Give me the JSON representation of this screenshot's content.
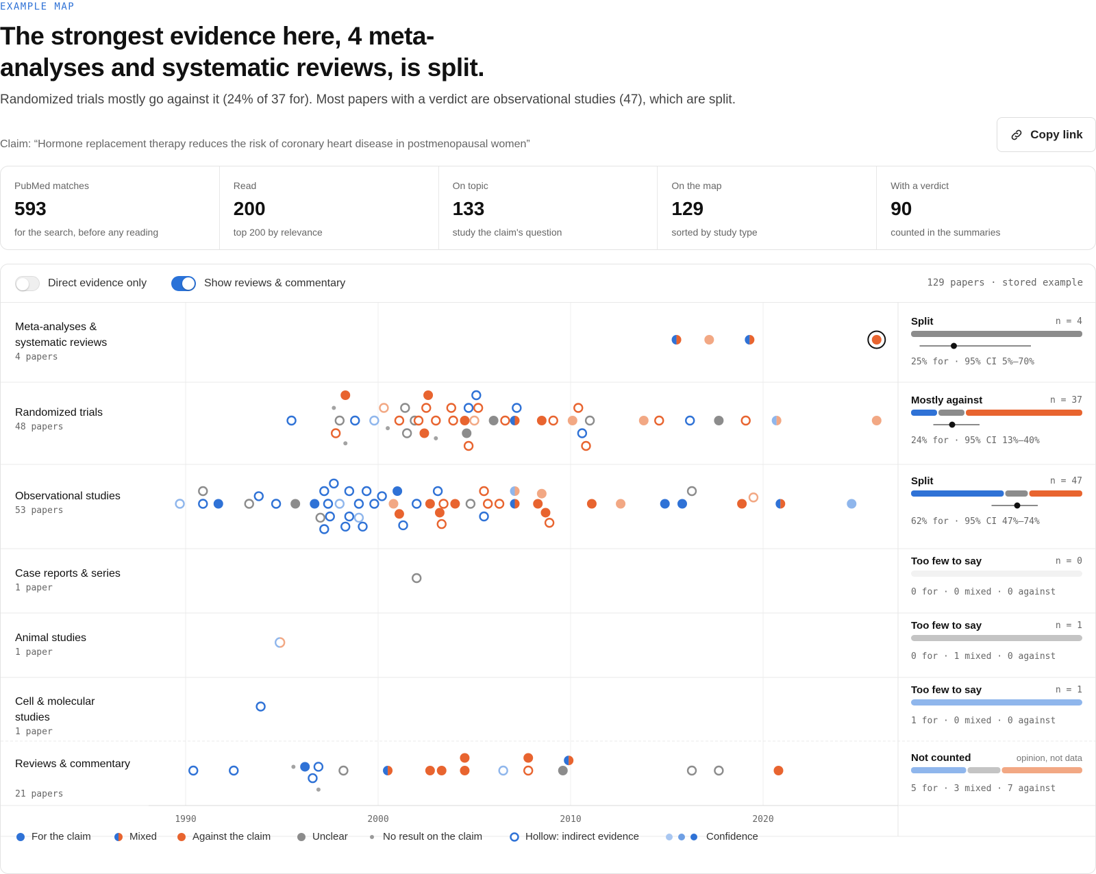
{
  "header": {
    "eyebrow": "EXAMPLE MAP",
    "headline": "The strongest evidence here, 4 meta-analyses and systematic reviews, is split.",
    "subhead": "Randomized trials mostly go against it (24% of 37 for). Most papers with a verdict are observational studies (47), which are split.",
    "claim": "Claim: “Hormone replacement therapy reduces the risk of coronary heart disease in postmenopausal women”",
    "copy_link_label": "Copy link"
  },
  "stats": [
    {
      "label": "PubMed matches",
      "value": "593",
      "note": "for the search, before any reading"
    },
    {
      "label": "Read",
      "value": "200",
      "note": "top 200 by relevance"
    },
    {
      "label": "On topic",
      "value": "133",
      "note": "study the claim's question"
    },
    {
      "label": "On the map",
      "value": "129",
      "note": "sorted by study type"
    },
    {
      "label": "With a verdict",
      "value": "90",
      "note": "counted in the summaries"
    }
  ],
  "toolbar": {
    "direct_only_label": "Direct evidence only",
    "direct_only_on": false,
    "show_reviews_label": "Show reviews & commentary",
    "show_reviews_on": true,
    "status": "129 papers · stored example"
  },
  "colors": {
    "for": "#2f72d6",
    "against": "#e8642f",
    "unclear": "#8c8c8c",
    "for_light": "#8fb6ec",
    "against_light": "#f2a884",
    "unclear_light": "#c4c4c4"
  },
  "chart_data": {
    "type": "scatter",
    "x_ticks": [
      "1990",
      "2000",
      "2010",
      "2020"
    ],
    "xlim": [
      1990,
      2026
    ],
    "rows": [
      {
        "label": "Meta-analyses & systematic reviews",
        "count": "4 papers",
        "summary": {
          "verdict": "Split",
          "n": "n = 4",
          "stat": "25% for · 95% CI 5%–70%",
          "bar": [
            0,
            1,
            1
          ],
          "point": 0.25,
          "ci": [
            0.05,
            0.7
          ]
        },
        "points": [
          {
            "x": 2015.5,
            "lane": 0,
            "v": "mixed"
          },
          {
            "x": 2017.2,
            "lane": 0,
            "v": "against",
            "c": 2
          },
          {
            "x": 2019.3,
            "lane": 0,
            "v": "mixed"
          },
          {
            "x": 2025.9,
            "lane": 0,
            "v": "against",
            "highlight": true
          }
        ]
      },
      {
        "label": "Randomized trials",
        "count": "48 papers",
        "summary": {
          "verdict": "Mostly against",
          "n": "n = 37",
          "stat": "24% for · 95% CI 13%–40%",
          "bar": [
            0.16,
            0.16,
            0.68
          ],
          "point": 0.24,
          "ci": [
            0.13,
            0.4
          ]
        },
        "points": [
          {
            "x": 1995.5,
            "lane": 0,
            "v": "for",
            "hollow": true
          },
          {
            "x": 1998.0,
            "lane": 0,
            "v": "unclear",
            "hollow": true
          },
          {
            "x": 1998.8,
            "lane": 0,
            "v": "for",
            "hollow": true
          },
          {
            "x": 1999.8,
            "lane": 0,
            "v": "for",
            "hollow": true,
            "c": 2
          },
          {
            "x": 2001.1,
            "lane": 0,
            "v": "against",
            "hollow": true
          },
          {
            "x": 2001.9,
            "lane": 0,
            "v": "unclear",
            "hollow": true
          },
          {
            "x": 2002.1,
            "lane": 0,
            "v": "against",
            "hollow": true
          },
          {
            "x": 2003.0,
            "lane": 0,
            "v": "against",
            "hollow": true
          },
          {
            "x": 2003.9,
            "lane": 0,
            "v": "against",
            "hollow": true
          },
          {
            "x": 2004.5,
            "lane": 0,
            "v": "against"
          },
          {
            "x": 2005.0,
            "lane": 0,
            "v": "against",
            "hollow": true,
            "c": 2
          },
          {
            "x": 2006.0,
            "lane": 0,
            "v": "unclear"
          },
          {
            "x": 2006.6,
            "lane": 0,
            "v": "against",
            "hollow": true
          },
          {
            "x": 2007.1,
            "lane": 0,
            "v": "mixed"
          },
          {
            "x": 2008.5,
            "lane": 0,
            "v": "against"
          },
          {
            "x": 2009.1,
            "lane": 0,
            "v": "against",
            "hollow": true
          },
          {
            "x": 2010.1,
            "lane": 0,
            "v": "against",
            "c": 2
          },
          {
            "x": 2011.0,
            "lane": 0,
            "v": "unclear",
            "hollow": true
          },
          {
            "x": 2013.8,
            "lane": 0,
            "v": "against",
            "c": 2
          },
          {
            "x": 2014.6,
            "lane": 0,
            "v": "against",
            "hollow": true
          },
          {
            "x": 2016.2,
            "lane": 0,
            "v": "for",
            "hollow": true
          },
          {
            "x": 2017.7,
            "lane": 0,
            "v": "unclear"
          },
          {
            "x": 2019.1,
            "lane": 0,
            "v": "against",
            "hollow": true
          },
          {
            "x": 2020.7,
            "lane": 0,
            "v": "mixed",
            "c": 2
          },
          {
            "x": 2025.9,
            "lane": 0,
            "v": "against",
            "c": 2
          },
          {
            "x": 1998.3,
            "lane": -2,
            "v": "against"
          },
          {
            "x": 2000.3,
            "lane": -1,
            "v": "against",
            "hollow": true,
            "c": 2
          },
          {
            "x": 2001.4,
            "lane": -1,
            "v": "unclear",
            "hollow": true
          },
          {
            "x": 2002.5,
            "lane": -1,
            "v": "against",
            "hollow": true
          },
          {
            "x": 2002.6,
            "lane": -2,
            "v": "against"
          },
          {
            "x": 2003.8,
            "lane": -1,
            "v": "against",
            "hollow": true
          },
          {
            "x": 2004.7,
            "lane": -1,
            "v": "for",
            "hollow": true
          },
          {
            "x": 2005.2,
            "lane": -1,
            "v": "against",
            "hollow": true
          },
          {
            "x": 2005.1,
            "lane": -2,
            "v": "for",
            "hollow": true
          },
          {
            "x": 2007.2,
            "lane": -1,
            "v": "for",
            "hollow": true
          },
          {
            "x": 2010.4,
            "lane": -1,
            "v": "against",
            "hollow": true
          },
          {
            "x": 1997.8,
            "lane": 1,
            "v": "against",
            "hollow": true
          },
          {
            "x": 2001.5,
            "lane": 1,
            "v": "unclear",
            "hollow": true
          },
          {
            "x": 2002.4,
            "lane": 1,
            "v": "against"
          },
          {
            "x": 2004.6,
            "lane": 1,
            "v": "unclear"
          },
          {
            "x": 2010.6,
            "lane": 1,
            "v": "for",
            "hollow": true
          },
          {
            "x": 2004.7,
            "lane": 2,
            "v": "against",
            "hollow": true
          },
          {
            "x": 2010.8,
            "lane": 2,
            "v": "against",
            "hollow": true
          },
          {
            "x": 1997.7,
            "lane": -1,
            "v": "none"
          },
          {
            "x": 2000.5,
            "lane": 0.6,
            "v": "none"
          },
          {
            "x": 2003.0,
            "lane": 1.4,
            "v": "none"
          },
          {
            "x": 1998.3,
            "lane": 1.8,
            "v": "none"
          }
        ]
      },
      {
        "label": "Observational studies",
        "count": "53 papers",
        "summary": {
          "verdict": "Split",
          "n": "n = 47",
          "stat": "62% for · 95% CI 47%–74%",
          "bar": [
            0.55,
            0.14,
            0.31
          ],
          "point": 0.62,
          "ci": [
            0.47,
            0.74
          ]
        },
        "points": [
          {
            "x": 1989.7,
            "lane": 0,
            "v": "for",
            "hollow": true,
            "c": 2
          },
          {
            "x": 1990.9,
            "lane": 0,
            "v": "for",
            "hollow": true
          },
          {
            "x": 1991.7,
            "lane": 0,
            "v": "for"
          },
          {
            "x": 1993.3,
            "lane": 0,
            "v": "unclear",
            "hollow": true
          },
          {
            "x": 1994.7,
            "lane": 0,
            "v": "for",
            "hollow": true
          },
          {
            "x": 1995.7,
            "lane": 0,
            "v": "unclear"
          },
          {
            "x": 1996.7,
            "lane": 0,
            "v": "for"
          },
          {
            "x": 1997.4,
            "lane": 0,
            "v": "for",
            "hollow": true
          },
          {
            "x": 1998.0,
            "lane": 0,
            "v": "for",
            "hollow": true,
            "c": 2
          },
          {
            "x": 1999.0,
            "lane": 0,
            "v": "for",
            "hollow": true
          },
          {
            "x": 1999.8,
            "lane": 0,
            "v": "for",
            "hollow": true
          },
          {
            "x": 2000.8,
            "lane": 0,
            "v": "against",
            "c": 2
          },
          {
            "x": 2002.0,
            "lane": 0,
            "v": "for",
            "hollow": true
          },
          {
            "x": 2002.7,
            "lane": 0,
            "v": "against"
          },
          {
            "x": 2003.4,
            "lane": 0,
            "v": "against",
            "hollow": true
          },
          {
            "x": 2004.0,
            "lane": 0,
            "v": "against"
          },
          {
            "x": 2004.8,
            "lane": 0,
            "v": "unclear",
            "hollow": true
          },
          {
            "x": 2005.7,
            "lane": 0,
            "v": "against",
            "hollow": true
          },
          {
            "x": 2006.3,
            "lane": 0,
            "v": "against",
            "hollow": true
          },
          {
            "x": 2007.1,
            "lane": 0,
            "v": "mixed"
          },
          {
            "x": 2008.3,
            "lane": 0,
            "v": "against"
          },
          {
            "x": 2011.1,
            "lane": 0,
            "v": "against"
          },
          {
            "x": 2012.6,
            "lane": 0,
            "v": "against",
            "c": 2
          },
          {
            "x": 2014.9,
            "lane": 0,
            "v": "for"
          },
          {
            "x": 2015.8,
            "lane": 0,
            "v": "for"
          },
          {
            "x": 2018.9,
            "lane": 0,
            "v": "against"
          },
          {
            "x": 2020.9,
            "lane": 0,
            "v": "mixed"
          },
          {
            "x": 2024.6,
            "lane": 0,
            "v": "for",
            "c": 2
          },
          {
            "x": 1990.9,
            "lane": -1,
            "v": "unclear",
            "hollow": true
          },
          {
            "x": 1993.8,
            "lane": -0.6,
            "v": "for",
            "hollow": true
          },
          {
            "x": 1997.2,
            "lane": -1,
            "v": "for",
            "hollow": true
          },
          {
            "x": 1997.7,
            "lane": -1.6,
            "v": "for",
            "hollow": true
          },
          {
            "x": 1998.5,
            "lane": -1,
            "v": "for",
            "hollow": true
          },
          {
            "x": 1999.4,
            "lane": -1,
            "v": "for",
            "hollow": true
          },
          {
            "x": 2000.2,
            "lane": -0.6,
            "v": "for",
            "hollow": true
          },
          {
            "x": 2001.0,
            "lane": -1,
            "v": "for"
          },
          {
            "x": 2003.1,
            "lane": -1,
            "v": "for",
            "hollow": true
          },
          {
            "x": 2005.5,
            "lane": -1,
            "v": "against",
            "hollow": true
          },
          {
            "x": 2007.1,
            "lane": -1,
            "v": "mixed",
            "c": 2
          },
          {
            "x": 2008.5,
            "lane": -0.8,
            "v": "against",
            "c": 2
          },
          {
            "x": 2016.3,
            "lane": -1,
            "v": "unclear",
            "hollow": true
          },
          {
            "x": 2019.5,
            "lane": -0.5,
            "v": "against",
            "hollow": true,
            "c": 2
          },
          {
            "x": 1997.5,
            "lane": 1,
            "v": "for",
            "hollow": true
          },
          {
            "x": 1998.5,
            "lane": 1,
            "v": "for",
            "hollow": true
          },
          {
            "x": 1999.0,
            "lane": 1.1,
            "v": "for",
            "hollow": true,
            "c": 2
          },
          {
            "x": 2001.1,
            "lane": 0.8,
            "v": "against"
          },
          {
            "x": 2003.2,
            "lane": 0.7,
            "v": "against"
          },
          {
            "x": 2005.5,
            "lane": 1,
            "v": "for",
            "hollow": true
          },
          {
            "x": 2008.7,
            "lane": 0.7,
            "v": "against"
          },
          {
            "x": 1997.0,
            "lane": 1.1,
            "v": "unclear",
            "hollow": true
          },
          {
            "x": 1997.2,
            "lane": 2,
            "v": "for",
            "hollow": true
          },
          {
            "x": 1998.3,
            "lane": 1.8,
            "v": "for",
            "hollow": true
          },
          {
            "x": 1999.2,
            "lane": 1.8,
            "v": "for",
            "hollow": true
          },
          {
            "x": 2001.3,
            "lane": 1.7,
            "v": "for",
            "hollow": true
          },
          {
            "x": 2003.3,
            "lane": 1.6,
            "v": "against",
            "hollow": true
          },
          {
            "x": 2008.9,
            "lane": 1.5,
            "v": "against",
            "hollow": true
          }
        ]
      },
      {
        "label": "Case reports & series",
        "count": "1 paper",
        "summary": {
          "verdict": "Too few to say",
          "n": "n = 0",
          "stat": "0 for · 0 mixed · 0 against",
          "bar_tone": "empty"
        },
        "points": [
          {
            "x": 2002.0,
            "lane": 0,
            "v": "unclear",
            "hollow": true
          }
        ]
      },
      {
        "label": "Animal studies",
        "count": "1 paper",
        "summary": {
          "verdict": "Too few to say",
          "n": "n = 1",
          "stat": "0 for · 1 mixed · 0 against",
          "bar_tone": "unclear_light"
        },
        "points": [
          {
            "x": 1994.9,
            "lane": 0,
            "v": "mixed",
            "hollow": true,
            "c": 2
          }
        ]
      },
      {
        "label": "Cell & molecular studies",
        "count": "1 paper",
        "summary": {
          "verdict": "Too few to say",
          "n": "n = 1",
          "stat": "1 for · 0 mixed · 0 against",
          "bar_tone": "for_light"
        },
        "points": [
          {
            "x": 1993.9,
            "lane": 0,
            "v": "for",
            "hollow": true
          }
        ]
      },
      {
        "label": "Reviews & commentary",
        "count": "21 papers",
        "summary": {
          "verdict": "Not counted",
          "note": "opinion, not data",
          "stat": "5 for · 3 mixed · 7 against",
          "bar": [
            0.33,
            0.2,
            0.47
          ],
          "bar_light": true
        },
        "points": [
          {
            "x": 1990.4,
            "lane": 0,
            "v": "for",
            "hollow": true
          },
          {
            "x": 1992.5,
            "lane": 0,
            "v": "for",
            "hollow": true
          },
          {
            "x": 1995.6,
            "lane": -0.3,
            "v": "none"
          },
          {
            "x": 1996.2,
            "lane": -0.3,
            "v": "for"
          },
          {
            "x": 1996.9,
            "lane": -0.3,
            "v": "for",
            "hollow": true
          },
          {
            "x": 1996.6,
            "lane": 0.6,
            "v": "for",
            "hollow": true
          },
          {
            "x": 1996.9,
            "lane": 1.5,
            "v": "none"
          },
          {
            "x": 1998.2,
            "lane": 0,
            "v": "unclear",
            "hollow": true
          },
          {
            "x": 2000.5,
            "lane": 0,
            "v": "mixed"
          },
          {
            "x": 2002.7,
            "lane": 0,
            "v": "against"
          },
          {
            "x": 2003.3,
            "lane": 0,
            "v": "against"
          },
          {
            "x": 2004.5,
            "lane": 0,
            "v": "against"
          },
          {
            "x": 2004.5,
            "lane": -1,
            "v": "against"
          },
          {
            "x": 2006.5,
            "lane": 0,
            "v": "for",
            "hollow": true,
            "c": 2
          },
          {
            "x": 2007.8,
            "lane": 0,
            "v": "against",
            "hollow": true
          },
          {
            "x": 2007.8,
            "lane": -1,
            "v": "against"
          },
          {
            "x": 2009.6,
            "lane": 0,
            "v": "unclear"
          },
          {
            "x": 2009.9,
            "lane": -0.8,
            "v": "mixed"
          },
          {
            "x": 2016.3,
            "lane": 0,
            "v": "unclear",
            "hollow": true
          },
          {
            "x": 2017.7,
            "lane": 0,
            "v": "unclear",
            "hollow": true
          },
          {
            "x": 2020.8,
            "lane": 0,
            "v": "against"
          }
        ]
      }
    ]
  },
  "legend": {
    "for": "For the claim",
    "mixed": "Mixed",
    "against": "Against the claim",
    "unclear": "Unclear",
    "none": "No result on the claim",
    "hollow": "Hollow: indirect evidence",
    "confidence": "Confidence"
  }
}
